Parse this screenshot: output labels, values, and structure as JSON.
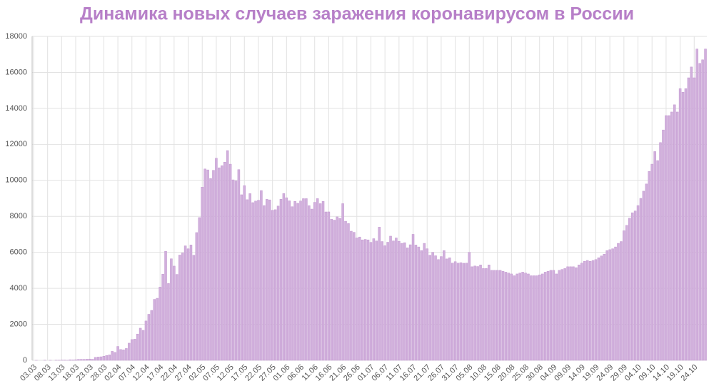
{
  "chart_data": {
    "type": "bar",
    "title": "Динамика новых случаев заражения коронавирусом в России",
    "categories": [
      "03.03",
      null,
      null,
      null,
      null,
      "08.03",
      null,
      null,
      null,
      null,
      "13.03",
      null,
      null,
      null,
      null,
      "18.03",
      null,
      null,
      null,
      null,
      "23.03",
      null,
      null,
      null,
      null,
      "28.03",
      null,
      null,
      null,
      null,
      "02.04",
      null,
      null,
      null,
      null,
      "07.04",
      null,
      null,
      null,
      null,
      "12.04",
      null,
      null,
      null,
      null,
      "17.04",
      null,
      null,
      null,
      null,
      "22.04",
      null,
      null,
      null,
      null,
      "27.04",
      null,
      null,
      null,
      null,
      "02.05",
      null,
      null,
      null,
      null,
      "07.05",
      null,
      null,
      null,
      null,
      "12.05",
      null,
      null,
      null,
      null,
      "17.05",
      null,
      null,
      null,
      null,
      "22.05",
      null,
      null,
      null,
      null,
      "27.05",
      null,
      null,
      null,
      null,
      "01.06",
      null,
      null,
      null,
      null,
      "06.06",
      null,
      null,
      null,
      null,
      "11.06",
      null,
      null,
      null,
      null,
      "16.06",
      null,
      null,
      null,
      null,
      "21.06",
      null,
      null,
      null,
      null,
      "26.06",
      null,
      null,
      null,
      null,
      "01.07",
      null,
      null,
      null,
      null,
      "06.07",
      null,
      null,
      null,
      null,
      "11.07",
      null,
      null,
      null,
      null,
      "16.07",
      null,
      null,
      null,
      null,
      "21.07",
      null,
      null,
      null,
      null,
      "26.07",
      null,
      null,
      null,
      null,
      "31.07",
      null,
      null,
      null,
      null,
      "05.08",
      null,
      null,
      null,
      null,
      "10.08",
      null,
      null,
      null,
      null,
      "15.08",
      null,
      null,
      null,
      null,
      "20.08",
      null,
      null,
      null,
      null,
      "25.08",
      null,
      null,
      null,
      null,
      "30.08",
      null,
      null,
      null,
      null,
      "04.09",
      null,
      null,
      null,
      null,
      "09.09",
      null,
      null,
      null,
      null,
      "14.09",
      null,
      null,
      null,
      null,
      "19.09",
      null,
      null,
      null,
      null,
      "24.09",
      null,
      null,
      null,
      null,
      "29.09",
      null,
      null,
      null,
      null,
      "04.10",
      null,
      null,
      null,
      null,
      "09.10",
      null,
      null,
      null,
      null,
      "14.10",
      null,
      null,
      null,
      null,
      "19.10",
      null,
      null,
      null,
      null,
      "24.10",
      null,
      null,
      null,
      null
    ],
    "values": [
      0,
      1,
      0,
      0,
      10,
      0,
      3,
      0,
      8,
      6,
      11,
      14,
      4,
      30,
      21,
      33,
      52,
      54,
      53,
      61,
      71,
      57,
      163,
      182,
      196,
      228,
      270,
      302,
      500,
      440,
      771,
      601,
      582,
      658,
      954,
      1154,
      1175,
      1459,
      1786,
      1667,
      2186,
      2558,
      2774,
      3388,
      3448,
      4070,
      4785,
      6060,
      4268,
      5642,
      5236,
      4774,
      5849,
      5966,
      6361,
      6198,
      6411,
      5841,
      7099,
      7933,
      9623,
      10633,
      10581,
      10102,
      10559,
      11231,
      10699,
      10817,
      11012,
      11656,
      10899,
      10028,
      9974,
      10598,
      9200,
      9709,
      8926,
      9263,
      8764,
      8849,
      8894,
      9434,
      8599,
      8946,
      8915,
      8338,
      8371,
      8572,
      8952,
      9268,
      9035,
      8863,
      8536,
      8831,
      8726,
      8855,
      8984,
      8985,
      8595,
      8404,
      8779,
      8987,
      8706,
      8835,
      8246,
      8248,
      7843,
      7790,
      7972,
      7889,
      8706,
      7728,
      7600,
      7176,
      7113,
      6800,
      6852,
      6693,
      6719,
      6693,
      6556,
      6760,
      6632,
      7400,
      6600,
      6368,
      6562,
      6900,
      6635,
      6800,
      6615,
      6500,
      6537,
      6248,
      6422,
      7000,
      6406,
      6300,
      6100,
      6500,
      6200,
      5842,
      6000,
      5811,
      5600,
      5765,
      6100,
      5635,
      5700,
      5400,
      5482,
      5400,
      5427,
      5394,
      5400,
      6000,
      5200,
      5241,
      5212,
      5300,
      5100,
      5102,
      5300,
      5000,
      5000,
      5000,
      5000,
      4950,
      4900,
      4850,
      4800,
      4700,
      4800,
      4850,
      4900,
      4850,
      4800,
      4700,
      4700,
      4700,
      4750,
      4800,
      4900,
      4950,
      5000,
      5000,
      4800,
      5000,
      5050,
      5100,
      5200,
      5200,
      5200,
      5150,
      5300,
      5400,
      5500,
      5550,
      5500,
      5550,
      5600,
      5700,
      5800,
      5900,
      6100,
      6150,
      6200,
      6300,
      6500,
      6600,
      7200,
      7500,
      7900,
      8200,
      8300,
      8600,
      9000,
      9400,
      9800,
      10500,
      10900,
      11600,
      11100,
      12100,
      12800,
      13600,
      13600,
      13800,
      14200,
      13800,
      15100,
      14900,
      15100,
      15700,
      16300,
      15700,
      17300,
      16500,
      16700,
      17300
    ],
    "color": "#d1b0dc",
    "ylim": [
      0,
      18000
    ],
    "yticks": [
      0,
      2000,
      4000,
      6000,
      8000,
      10000,
      12000,
      14000,
      16000,
      18000
    ],
    "grid": true
  }
}
